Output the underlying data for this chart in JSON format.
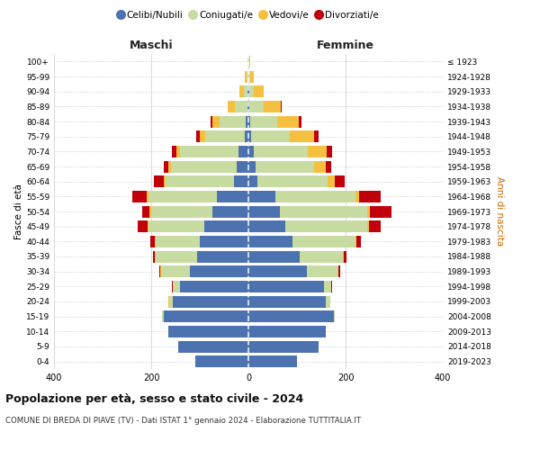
{
  "age_groups": [
    "0-4",
    "5-9",
    "10-14",
    "15-19",
    "20-24",
    "25-29",
    "30-34",
    "35-39",
    "40-44",
    "45-49",
    "50-54",
    "55-59",
    "60-64",
    "65-69",
    "70-74",
    "75-79",
    "80-84",
    "85-89",
    "90-94",
    "95-99",
    "100+"
  ],
  "birth_years": [
    "2019-2023",
    "2014-2018",
    "2009-2013",
    "2004-2008",
    "1999-2003",
    "1994-1998",
    "1989-1993",
    "1984-1988",
    "1979-1983",
    "1974-1978",
    "1969-1973",
    "1964-1968",
    "1959-1963",
    "1954-1958",
    "1949-1953",
    "1944-1948",
    "1939-1943",
    "1934-1938",
    "1929-1933",
    "1924-1928",
    "≤ 1923"
  ],
  "colors": {
    "celibi": "#4c72b0",
    "coniugati": "#c8dba0",
    "vedovi": "#f5c040",
    "divorziati": "#c0000b"
  },
  "maschi": {
    "celibi": [
      110,
      145,
      165,
      175,
      155,
      140,
      120,
      105,
      100,
      90,
      75,
      65,
      30,
      25,
      20,
      8,
      5,
      2,
      1,
      0,
      0
    ],
    "coniugati": [
      0,
      0,
      0,
      2,
      8,
      15,
      60,
      85,
      90,
      115,
      125,
      140,
      140,
      135,
      120,
      80,
      55,
      25,
      8,
      3,
      1
    ],
    "vedovi": [
      0,
      0,
      0,
      0,
      1,
      1,
      1,
      2,
      2,
      2,
      3,
      4,
      5,
      5,
      8,
      12,
      15,
      15,
      10,
      5,
      1
    ],
    "divorziati": [
      0,
      0,
      0,
      0,
      0,
      2,
      3,
      5,
      10,
      20,
      15,
      30,
      20,
      10,
      10,
      8,
      3,
      1,
      0,
      0,
      0
    ]
  },
  "femmine": {
    "celibi": [
      100,
      145,
      160,
      175,
      160,
      155,
      120,
      105,
      90,
      75,
      65,
      55,
      18,
      15,
      12,
      6,
      4,
      2,
      1,
      0,
      0
    ],
    "coniugati": [
      0,
      0,
      0,
      2,
      8,
      15,
      65,
      90,
      130,
      170,
      180,
      165,
      145,
      120,
      110,
      80,
      55,
      30,
      10,
      3,
      1
    ],
    "vedovi": [
      0,
      0,
      0,
      0,
      1,
      1,
      1,
      2,
      2,
      3,
      5,
      8,
      15,
      25,
      40,
      50,
      45,
      35,
      20,
      8,
      2
    ],
    "divorziati": [
      0,
      0,
      0,
      0,
      0,
      2,
      3,
      5,
      10,
      25,
      45,
      45,
      20,
      10,
      10,
      8,
      5,
      2,
      0,
      0,
      0
    ]
  },
  "xlim": 400,
  "title": "Popolazione per età, sesso e stato civile - 2024",
  "subtitle": "COMUNE DI BREDA DI PIAVE (TV) - Dati ISTAT 1° gennaio 2024 - Elaborazione TUTTITALIA.IT",
  "xlabel_left": "Maschi",
  "xlabel_right": "Femmine",
  "ylabel_left": "Fasce di età",
  "ylabel_right": "Anni di nascita",
  "legend_labels": [
    "Celibi/Nubili",
    "Coniugati/e",
    "Vedovi/e",
    "Divorziati/e"
  ],
  "background_color": "#ffffff",
  "grid_color": "#cccccc"
}
